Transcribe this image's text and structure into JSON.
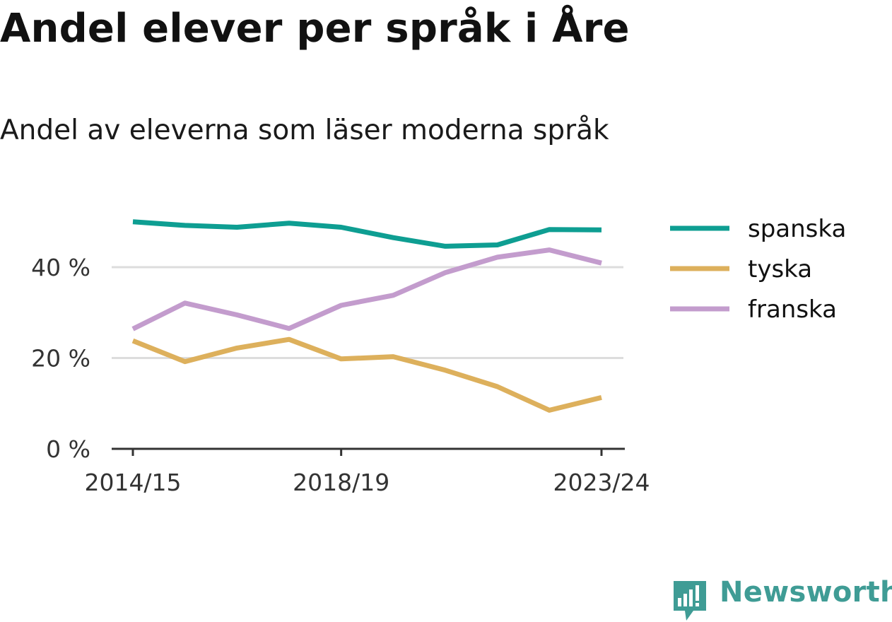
{
  "chart_data": {
    "type": "line",
    "title": "Andel elever per språk i Åre",
    "subtitle": "Andel av eleverna som läser moderna språk",
    "x": [
      "2014/15",
      "2015/16",
      "2016/17",
      "2017/18",
      "2018/19",
      "2019/20",
      "2020/21",
      "2021/22",
      "2022/23",
      "2023/24"
    ],
    "x_tick_labels": [
      "2014/15",
      "2018/19",
      "2023/24"
    ],
    "y_ticks": [
      0,
      20,
      40
    ],
    "y_tick_labels": [
      "0 %",
      "20 %",
      "40 %"
    ],
    "ylim": [
      0,
      50
    ],
    "xlabel": "",
    "ylabel": "",
    "grid": true,
    "legend_position": "right",
    "series": [
      {
        "name": "spanska",
        "color": "#0e9e92",
        "values": [
          50.0,
          49.2,
          48.8,
          49.7,
          48.8,
          46.5,
          44.6,
          44.9,
          48.3,
          48.2
        ]
      },
      {
        "name": "tyska",
        "color": "#ddb05c",
        "values": [
          23.8,
          19.2,
          22.2,
          24.1,
          19.8,
          20.3,
          17.3,
          13.7,
          8.5,
          11.3
        ]
      },
      {
        "name": "franska",
        "color": "#c39ccd",
        "values": [
          26.4,
          32.1,
          29.5,
          26.5,
          31.6,
          33.8,
          38.8,
          42.2,
          43.8,
          40.9
        ]
      }
    ]
  },
  "branding": {
    "logo_text": "Newsworthy",
    "logo_icon": "newsworthy-chart-bubble-icon",
    "color": "#3f9c95"
  }
}
